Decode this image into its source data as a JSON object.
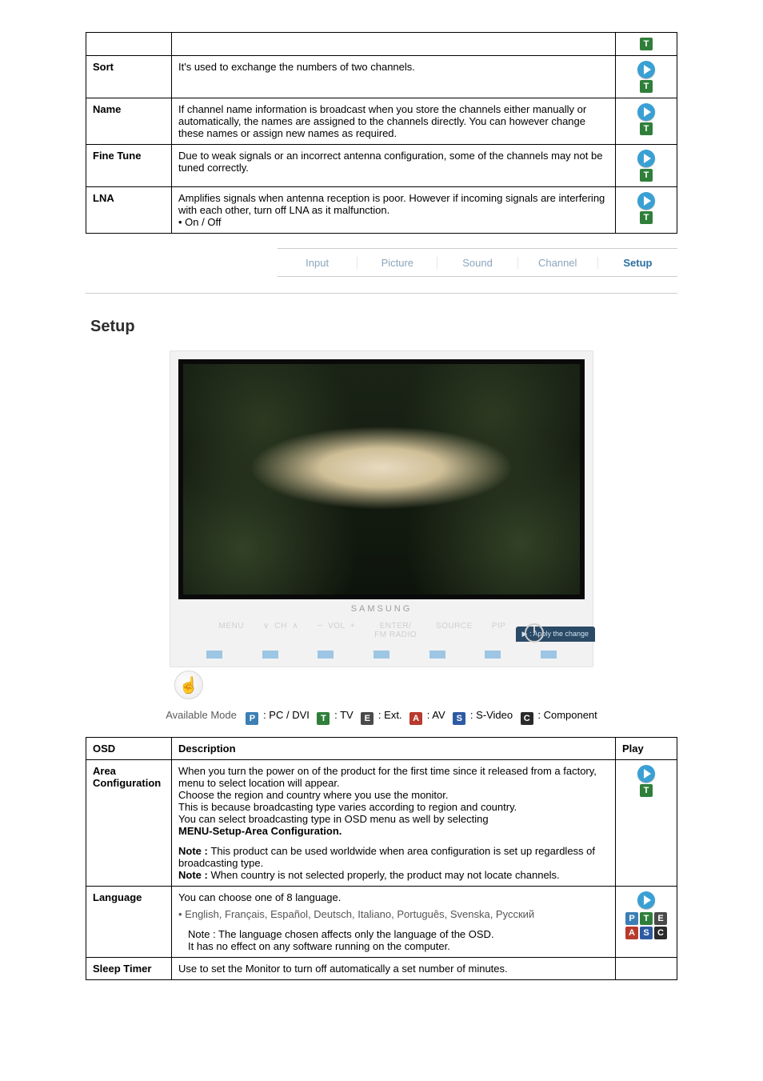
{
  "colors": {
    "mode": {
      "P": "#3b7fb5",
      "T": "#2f7f3a",
      "E": "#4a4a4a",
      "A": "#b83a2e",
      "S": "#2d5aa3",
      "C": "#2b2b2b"
    },
    "play_circle": "#3aa0d4",
    "footer_square": "#9dc6e4",
    "tv_hint_bg": "#2b4a66",
    "tab_active": "#2a6fa0",
    "tab_inactive": "#8aa5bb"
  },
  "top_rows": [
    {
      "label": "Sort",
      "description": "It's used to exchange the numbers of two channels.",
      "play_icons": [
        "play",
        "T"
      ]
    },
    {
      "label": "Name",
      "description": "If channel name information is broadcast when you store the channels either manually or automatically, the names are assigned to the channels directly. You can however change these names or assign new names as required.",
      "play_icons": [
        "play",
        "T"
      ]
    },
    {
      "label": "Fine Tune",
      "description": "Due to weak signals or an incorrect antenna configuration, some of the channels may not be tuned correctly.",
      "play_icons": [
        "play",
        "T"
      ]
    },
    {
      "label": "LNA",
      "description": "Amplifies signals when antenna reception is poor. However if incoming signals are interfering with each other, turn off LNA as it malfunction.\n• On / Off",
      "play_icons": [
        "play",
        "T"
      ]
    }
  ],
  "tabs": {
    "items": [
      "Input",
      "Picture",
      "Sound",
      "Channel",
      "Setup"
    ],
    "active": "Setup"
  },
  "section_title": "Setup",
  "tv": {
    "brand": "SAMSUNG",
    "hint": "▶ : Apply the change",
    "controls": [
      "MENU",
      "∨  CH  ∧",
      "−  VOL  +",
      "ENTER/\nFM RADIO",
      "SOURCE",
      "PIP"
    ],
    "foot_squares": 7
  },
  "legend": {
    "lead": "Available Mode",
    "items": [
      {
        "code": "P",
        "label": ": PC / DVI"
      },
      {
        "code": "T",
        "label": ": TV"
      },
      {
        "code": "E",
        "label": ": Ext."
      },
      {
        "code": "A",
        "label": ": AV"
      },
      {
        "code": "S",
        "label": ": S-Video"
      },
      {
        "code": "C",
        "label": ": Component"
      }
    ]
  },
  "setup_table": {
    "headers": {
      "osd": "OSD",
      "description": "Description",
      "play": "Play"
    },
    "rows": [
      {
        "osd": "Area Configuration",
        "description": {
          "lines": [
            "When you turn the power on of the product for the first time since it released from a factory, menu to select location will appear.",
            "Choose the region and country where you use the monitor.",
            "This is because broadcasting type varies according to region and country.",
            "You can select broadcasting type in OSD menu as well by selecting"
          ],
          "bold_line": "MENU-Setup-Area Configuration.",
          "notes": [
            "This product can be used worldwide when area configuration is set up regardless of broadcasting type.",
            "When country is not selected properly, the product may not locate channels."
          ]
        },
        "play_icons": [
          "play",
          "T"
        ],
        "play_layout": "stack"
      },
      {
        "osd": "Language",
        "description": {
          "intro": "You can choose one of 8 language.",
          "languages": "English, Français, Español, Deutsch,  Italiano, Português, Svenska, Русский",
          "note_line": "Note : The language chosen affects only the language of the OSD.",
          "tail": "It has no effect on any software running on the computer."
        },
        "play_icons": [
          "play",
          "P",
          "T",
          "E",
          "A",
          "S",
          "C"
        ],
        "play_layout": "row"
      },
      {
        "osd": "Sleep Timer",
        "description": {
          "text": "Use to set the Monitor to turn off automatically a set number of minutes."
        },
        "play_icons": [],
        "play_layout": "stack"
      }
    ]
  },
  "note_label": "Note :"
}
